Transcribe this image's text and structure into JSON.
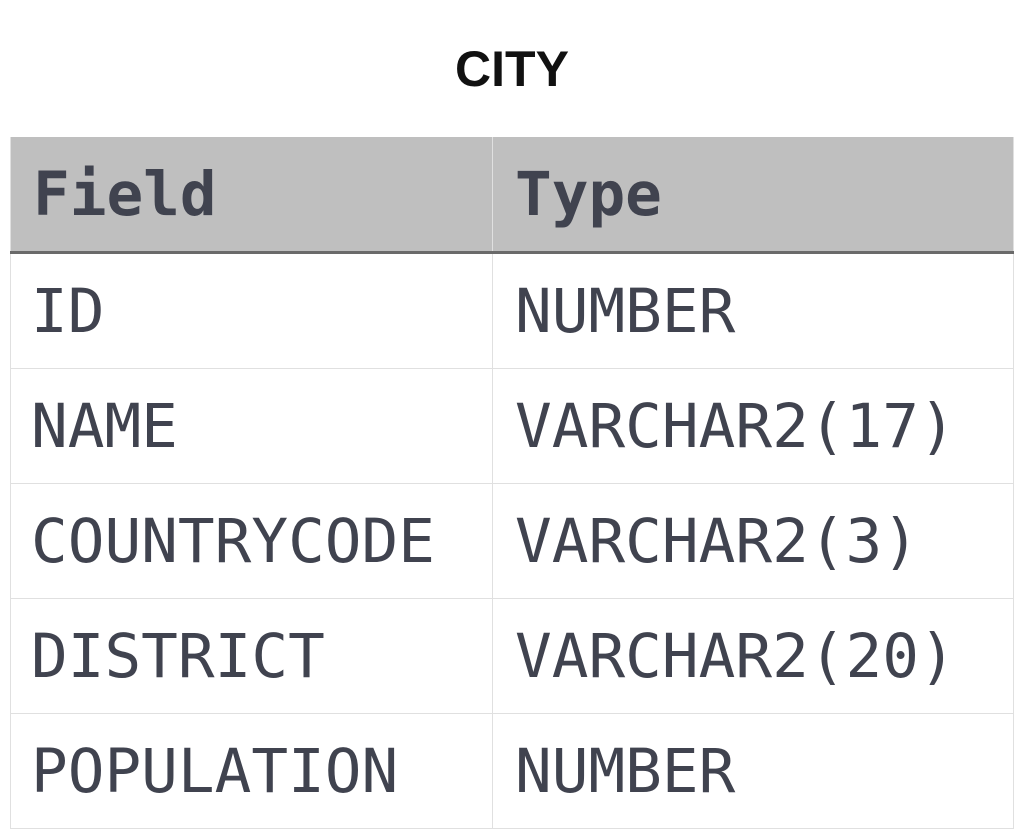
{
  "title": "CITY",
  "columns": [
    "Field",
    "Type"
  ],
  "rows": [
    [
      "ID",
      "NUMBER"
    ],
    [
      "NAME",
      "VARCHAR2(17)"
    ],
    [
      "COUNTRYCODE",
      "VARCHAR2(3)"
    ],
    [
      "DISTRICT",
      "VARCHAR2(20)"
    ],
    [
      "POPULATION",
      "NUMBER"
    ]
  ]
}
